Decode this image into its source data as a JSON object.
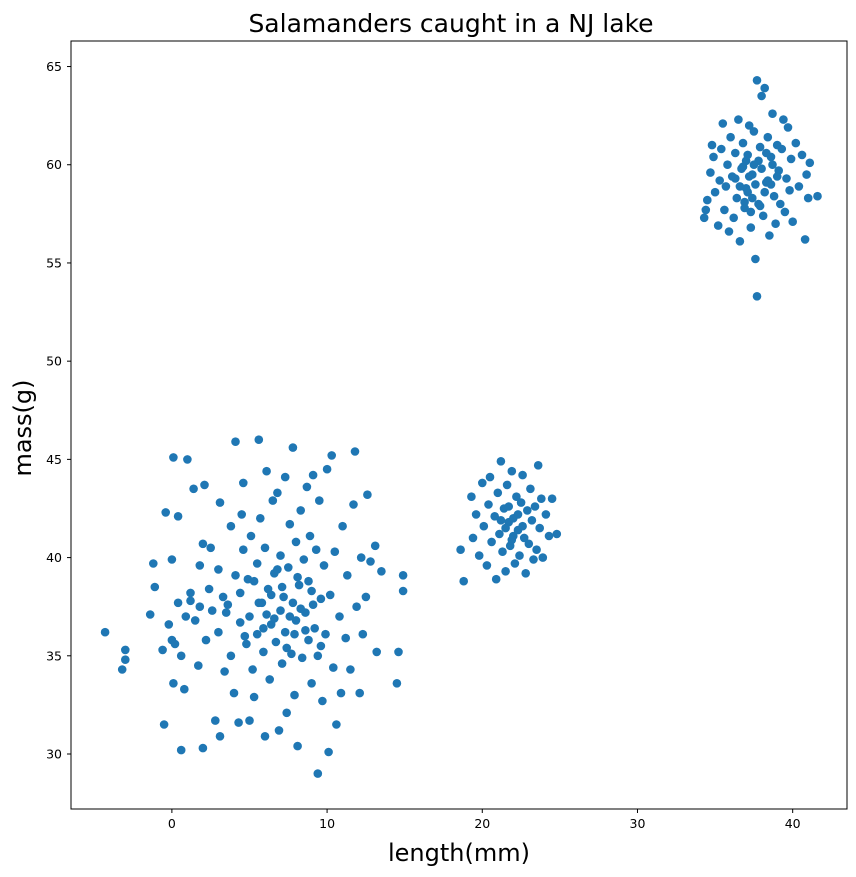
{
  "chart_data": {
    "type": "scatter",
    "title": "Salamanders caught in a NJ lake",
    "xlabel": "length(mm)",
    "ylabel": "mass(g)",
    "xlim": [
      -6.5,
      43.5
    ],
    "ylim": [
      27.2,
      66.3
    ],
    "xticks": [
      0,
      10,
      20,
      30,
      40
    ],
    "yticks": [
      30,
      35,
      40,
      45,
      50,
      55,
      60,
      65
    ],
    "xtick_labels": [
      "0",
      "10",
      "20",
      "30",
      "40"
    ],
    "ytick_labels": [
      "30",
      "35",
      "40",
      "45",
      "50",
      "55",
      "60",
      "65"
    ],
    "marker_color": "#1f77b4",
    "grid": false,
    "series": [
      {
        "values": [
          [
            -4.3,
            36.2
          ],
          [
            -3.2,
            34.3
          ],
          [
            -3.0,
            34.8
          ],
          [
            -3.0,
            35.3
          ],
          [
            -1.4,
            37.1
          ],
          [
            -1.2,
            39.7
          ],
          [
            -1.1,
            38.5
          ],
          [
            -0.6,
            35.3
          ],
          [
            -0.5,
            31.5
          ],
          [
            -0.4,
            42.3
          ],
          [
            -0.2,
            36.6
          ],
          [
            0.0,
            35.8
          ],
          [
            0.0,
            39.9
          ],
          [
            0.1,
            45.1
          ],
          [
            0.1,
            33.6
          ],
          [
            0.2,
            35.6
          ],
          [
            0.4,
            42.1
          ],
          [
            0.4,
            37.7
          ],
          [
            0.6,
            35.0
          ],
          [
            0.6,
            30.2
          ],
          [
            0.8,
            33.3
          ],
          [
            0.9,
            37.0
          ],
          [
            1.0,
            45.0
          ],
          [
            1.2,
            38.2
          ],
          [
            1.2,
            37.8
          ],
          [
            1.4,
            43.5
          ],
          [
            1.5,
            36.8
          ],
          [
            1.7,
            34.5
          ],
          [
            1.8,
            39.6
          ],
          [
            1.8,
            37.5
          ],
          [
            2.0,
            40.7
          ],
          [
            2.0,
            30.3
          ],
          [
            2.1,
            43.7
          ],
          [
            2.2,
            35.8
          ],
          [
            2.4,
            38.4
          ],
          [
            2.5,
            40.5
          ],
          [
            2.6,
            37.3
          ],
          [
            2.8,
            31.7
          ],
          [
            3.0,
            36.2
          ],
          [
            3.0,
            39.4
          ],
          [
            3.1,
            42.8
          ],
          [
            3.1,
            30.9
          ],
          [
            3.3,
            38.0
          ],
          [
            3.4,
            34.2
          ],
          [
            3.6,
            37.6
          ],
          [
            3.8,
            41.6
          ],
          [
            3.8,
            35.0
          ],
          [
            4.0,
            33.1
          ],
          [
            4.1,
            45.9
          ],
          [
            4.1,
            39.1
          ],
          [
            4.3,
            31.6
          ],
          [
            4.4,
            36.7
          ],
          [
            4.5,
            42.2
          ],
          [
            4.6,
            40.4
          ],
          [
            4.6,
            43.8
          ],
          [
            4.8,
            35.6
          ],
          [
            4.9,
            38.9
          ],
          [
            5.0,
            31.7
          ],
          [
            5.0,
            37.0
          ],
          [
            5.1,
            41.1
          ],
          [
            5.2,
            34.3
          ],
          [
            5.3,
            32.9
          ],
          [
            5.5,
            39.7
          ],
          [
            5.5,
            36.1
          ],
          [
            5.6,
            46.0
          ],
          [
            5.7,
            42.0
          ],
          [
            5.8,
            37.7
          ],
          [
            5.9,
            35.2
          ],
          [
            6.0,
            30.9
          ],
          [
            6.0,
            40.5
          ],
          [
            6.1,
            44.4
          ],
          [
            6.2,
            38.4
          ],
          [
            6.3,
            33.8
          ],
          [
            6.4,
            36.6
          ],
          [
            6.5,
            42.9
          ],
          [
            6.6,
            39.2
          ],
          [
            6.7,
            35.7
          ],
          [
            6.8,
            43.3
          ],
          [
            6.9,
            31.2
          ],
          [
            7.0,
            37.3
          ],
          [
            7.0,
            40.1
          ],
          [
            7.1,
            34.6
          ],
          [
            7.2,
            38.0
          ],
          [
            7.3,
            44.1
          ],
          [
            7.3,
            36.2
          ],
          [
            7.4,
            32.1
          ],
          [
            7.5,
            39.5
          ],
          [
            7.6,
            41.7
          ],
          [
            7.7,
            35.1
          ],
          [
            7.8,
            45.6
          ],
          [
            7.8,
            37.7
          ],
          [
            7.9,
            33.0
          ],
          [
            8.0,
            40.8
          ],
          [
            8.0,
            36.8
          ],
          [
            8.1,
            30.4
          ],
          [
            8.2,
            38.6
          ],
          [
            8.3,
            42.4
          ],
          [
            8.4,
            34.9
          ],
          [
            8.5,
            39.9
          ],
          [
            8.6,
            37.2
          ],
          [
            8.7,
            43.6
          ],
          [
            8.8,
            35.8
          ],
          [
            8.9,
            41.1
          ],
          [
            9.0,
            33.6
          ],
          [
            9.0,
            38.3
          ],
          [
            9.1,
            44.2
          ],
          [
            9.2,
            36.4
          ],
          [
            9.3,
            40.4
          ],
          [
            9.4,
            29.0
          ],
          [
            9.4,
            35.0
          ],
          [
            9.5,
            42.9
          ],
          [
            9.6,
            37.9
          ],
          [
            9.7,
            32.7
          ],
          [
            9.8,
            39.6
          ],
          [
            9.9,
            36.1
          ],
          [
            10.0,
            44.5
          ],
          [
            10.1,
            30.1
          ],
          [
            10.2,
            38.1
          ],
          [
            10.3,
            45.2
          ],
          [
            10.4,
            34.4
          ],
          [
            10.5,
            40.3
          ],
          [
            10.6,
            31.5
          ],
          [
            10.8,
            37.0
          ],
          [
            10.9,
            33.1
          ],
          [
            11.0,
            41.6
          ],
          [
            11.2,
            35.9
          ],
          [
            11.3,
            39.1
          ],
          [
            11.5,
            34.3
          ],
          [
            11.7,
            42.7
          ],
          [
            11.8,
            45.4
          ],
          [
            11.9,
            37.5
          ],
          [
            12.1,
            33.1
          ],
          [
            12.2,
            40.0
          ],
          [
            12.3,
            36.1
          ],
          [
            12.5,
            38.0
          ],
          [
            12.6,
            43.2
          ],
          [
            12.8,
            39.8
          ],
          [
            13.1,
            40.6
          ],
          [
            13.2,
            35.2
          ],
          [
            13.5,
            39.3
          ],
          [
            14.5,
            33.6
          ],
          [
            14.6,
            35.2
          ],
          [
            14.9,
            39.1
          ],
          [
            14.9,
            38.3
          ],
          [
            3.5,
            37.2
          ],
          [
            4.7,
            36.0
          ],
          [
            5.3,
            38.8
          ],
          [
            6.1,
            37.1
          ],
          [
            6.6,
            36.9
          ],
          [
            7.1,
            38.5
          ],
          [
            7.6,
            37.0
          ],
          [
            8.1,
            39.0
          ],
          [
            8.6,
            36.3
          ],
          [
            9.1,
            37.6
          ],
          [
            5.9,
            36.4
          ],
          [
            6.8,
            39.4
          ],
          [
            7.4,
            35.4
          ],
          [
            8.3,
            37.4
          ],
          [
            4.4,
            38.2
          ],
          [
            5.6,
            37.7
          ],
          [
            6.4,
            38.1
          ],
          [
            7.9,
            36.1
          ],
          [
            8.8,
            38.8
          ],
          [
            9.6,
            35.5
          ],
          [
            18.6,
            40.4
          ],
          [
            18.8,
            38.8
          ],
          [
            19.3,
            43.1
          ],
          [
            19.4,
            41.0
          ],
          [
            19.6,
            42.2
          ],
          [
            19.8,
            40.1
          ],
          [
            20.0,
            43.8
          ],
          [
            20.1,
            41.6
          ],
          [
            20.3,
            39.6
          ],
          [
            20.4,
            42.7
          ],
          [
            20.5,
            44.1
          ],
          [
            20.6,
            40.8
          ],
          [
            20.8,
            42.1
          ],
          [
            20.9,
            38.9
          ],
          [
            21.0,
            43.3
          ],
          [
            21.1,
            41.2
          ],
          [
            21.2,
            44.9
          ],
          [
            21.3,
            40.3
          ],
          [
            21.4,
            42.5
          ],
          [
            21.5,
            39.3
          ],
          [
            21.6,
            43.7
          ],
          [
            21.7,
            41.8
          ],
          [
            21.8,
            40.6
          ],
          [
            21.9,
            44.4
          ],
          [
            22.0,
            42.0
          ],
          [
            22.1,
            39.7
          ],
          [
            22.2,
            43.1
          ],
          [
            22.3,
            41.4
          ],
          [
            22.4,
            40.1
          ],
          [
            22.5,
            42.8
          ],
          [
            22.6,
            44.2
          ],
          [
            22.7,
            41.0
          ],
          [
            22.8,
            39.2
          ],
          [
            22.9,
            42.4
          ],
          [
            23.0,
            40.7
          ],
          [
            23.1,
            43.5
          ],
          [
            23.2,
            41.9
          ],
          [
            23.3,
            39.9
          ],
          [
            23.4,
            42.6
          ],
          [
            23.5,
            40.4
          ],
          [
            23.6,
            44.7
          ],
          [
            23.7,
            41.5
          ],
          [
            23.8,
            43.0
          ],
          [
            23.9,
            40.0
          ],
          [
            24.1,
            42.2
          ],
          [
            24.3,
            41.1
          ],
          [
            24.5,
            43.0
          ],
          [
            24.8,
            41.2
          ],
          [
            21.5,
            41.5
          ],
          [
            22.0,
            41.1
          ],
          [
            21.7,
            42.6
          ],
          [
            22.3,
            42.2
          ],
          [
            21.2,
            41.9
          ],
          [
            22.6,
            41.6
          ],
          [
            21.9,
            40.9
          ],
          [
            34.3,
            57.3
          ],
          [
            34.4,
            57.7
          ],
          [
            34.5,
            58.2
          ],
          [
            34.7,
            59.6
          ],
          [
            34.8,
            61.0
          ],
          [
            34.9,
            60.4
          ],
          [
            35.0,
            58.6
          ],
          [
            35.2,
            56.9
          ],
          [
            35.3,
            59.2
          ],
          [
            35.4,
            60.8
          ],
          [
            35.5,
            62.1
          ],
          [
            35.6,
            57.7
          ],
          [
            35.7,
            58.9
          ],
          [
            35.8,
            60.0
          ],
          [
            35.9,
            56.6
          ],
          [
            36.0,
            61.4
          ],
          [
            36.1,
            59.4
          ],
          [
            36.2,
            57.3
          ],
          [
            36.3,
            60.6
          ],
          [
            36.4,
            58.3
          ],
          [
            36.5,
            62.3
          ],
          [
            36.6,
            56.1
          ],
          [
            36.7,
            59.8
          ],
          [
            36.8,
            61.1
          ],
          [
            36.9,
            57.8
          ],
          [
            37.0,
            60.2
          ],
          [
            37.1,
            58.6
          ],
          [
            37.2,
            62.0
          ],
          [
            37.3,
            56.8
          ],
          [
            37.4,
            59.5
          ],
          [
            37.5,
            61.7
          ],
          [
            37.6,
            55.2
          ],
          [
            37.7,
            64.3
          ],
          [
            37.7,
            53.3
          ],
          [
            37.8,
            58.0
          ],
          [
            37.9,
            60.9
          ],
          [
            38.0,
            63.5
          ],
          [
            38.1,
            57.4
          ],
          [
            38.2,
            63.9
          ],
          [
            38.3,
            59.1
          ],
          [
            38.4,
            61.4
          ],
          [
            38.5,
            56.4
          ],
          [
            38.6,
            60.4
          ],
          [
            38.7,
            62.6
          ],
          [
            38.8,
            58.4
          ],
          [
            38.9,
            57.0
          ],
          [
            39.0,
            61.0
          ],
          [
            39.1,
            59.7
          ],
          [
            39.2,
            58.0
          ],
          [
            39.3,
            60.8
          ],
          [
            39.4,
            62.3
          ],
          [
            39.5,
            57.6
          ],
          [
            39.6,
            59.3
          ],
          [
            39.7,
            61.9
          ],
          [
            39.8,
            58.7
          ],
          [
            39.9,
            60.3
          ],
          [
            40.0,
            57.1
          ],
          [
            40.2,
            61.1
          ],
          [
            40.4,
            58.9
          ],
          [
            40.6,
            60.5
          ],
          [
            40.8,
            56.2
          ],
          [
            40.9,
            59.5
          ],
          [
            41.0,
            58.3
          ],
          [
            41.1,
            60.1
          ],
          [
            41.6,
            58.4
          ],
          [
            37.2,
            59.4
          ],
          [
            37.6,
            59.0
          ],
          [
            38.0,
            59.8
          ],
          [
            37.0,
            58.8
          ],
          [
            38.4,
            59.2
          ],
          [
            36.8,
            59.9
          ],
          [
            37.8,
            60.2
          ],
          [
            38.2,
            58.6
          ],
          [
            37.4,
            58.3
          ],
          [
            36.6,
            58.9
          ],
          [
            38.7,
            60.0
          ],
          [
            37.1,
            60.5
          ],
          [
            37.9,
            57.9
          ],
          [
            36.3,
            59.3
          ],
          [
            39.0,
            59.4
          ],
          [
            37.5,
            60.0
          ],
          [
            38.3,
            60.6
          ],
          [
            36.9,
            58.1
          ],
          [
            38.6,
            59.0
          ],
          [
            37.3,
            57.6
          ]
        ]
      }
    ]
  }
}
